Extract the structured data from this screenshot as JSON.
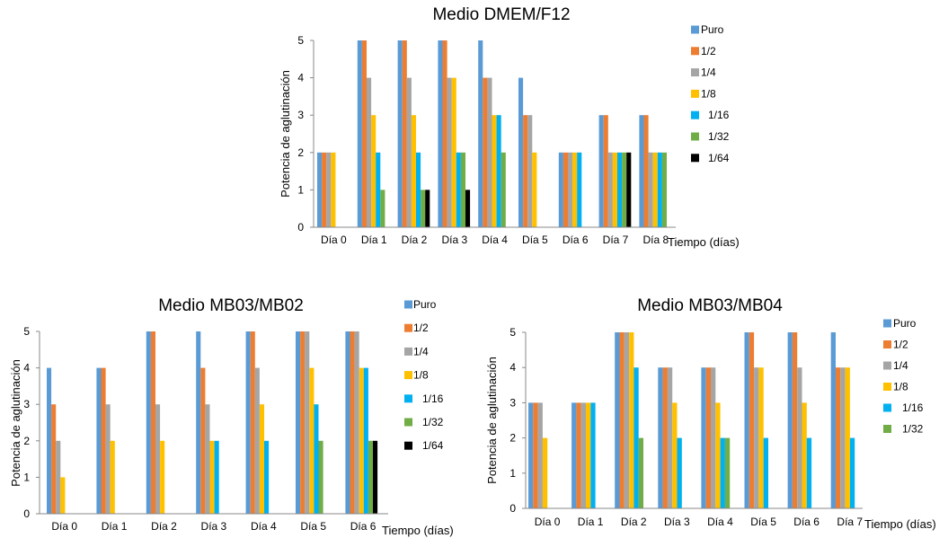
{
  "chart_data": [
    {
      "type": "bar",
      "title": "Medio DMEM/F12",
      "xlabel": "Tiempo (días)",
      "ylabel": "Potencia de aglutinación",
      "ylim": [
        0,
        5
      ],
      "yticks": [
        "0",
        "1",
        "2",
        "3",
        "4",
        "5"
      ],
      "grid": false,
      "legend": "right",
      "categories": [
        "Día 0",
        "Día 1",
        "Día 2",
        "Día 3",
        "Día 4",
        "Día 5",
        "Día 6",
        "Día 7",
        "Día 8"
      ],
      "series": [
        {
          "name": "Puro",
          "color": "#5B9BD5",
          "values": [
            2,
            5,
            5,
            5,
            5,
            4,
            2,
            3,
            3
          ]
        },
        {
          "name": "1/2",
          "color": "#ED7D31",
          "values": [
            2,
            5,
            5,
            5,
            4,
            3,
            2,
            3,
            3
          ]
        },
        {
          "name": "1/4",
          "color": "#A5A5A5",
          "values": [
            2,
            4,
            4,
            4,
            4,
            3,
            2,
            2,
            2
          ]
        },
        {
          "name": "1/8",
          "color": "#FFC000",
          "values": [
            2,
            3,
            3,
            4,
            3,
            2,
            2,
            2,
            2
          ]
        },
        {
          "name": "1/16",
          "color": "#00B0F0",
          "values": [
            0,
            2,
            2,
            2,
            3,
            0,
            2,
            2,
            2
          ]
        },
        {
          "name": "1/32",
          "color": "#70AD47",
          "values": [
            0,
            1,
            1,
            2,
            2,
            0,
            0,
            2,
            2
          ]
        },
        {
          "name": "1/64",
          "color": "#000000",
          "values": [
            0,
            0,
            1,
            1,
            0,
            0,
            0,
            2,
            0
          ]
        }
      ]
    },
    {
      "type": "bar",
      "title": "Medio MB03/MB02",
      "xlabel": "Tiempo (días)",
      "ylabel": "Potencia de aglutinación",
      "ylim": [
        0,
        5
      ],
      "yticks": [
        "0",
        "1",
        "2",
        "3",
        "4",
        "5"
      ],
      "grid": false,
      "legend": "right",
      "categories": [
        "Día 0",
        "Día 1",
        "Día 2",
        "Día 3",
        "Día 4",
        "Día 5",
        "Día 6"
      ],
      "series": [
        {
          "name": "Puro",
          "color": "#5B9BD5",
          "values": [
            4,
            4,
            5,
            5,
            5,
            5,
            5
          ]
        },
        {
          "name": "1/2",
          "color": "#ED7D31",
          "values": [
            3,
            4,
            5,
            4,
            5,
            5,
            5
          ]
        },
        {
          "name": "1/4",
          "color": "#A5A5A5",
          "values": [
            2,
            3,
            3,
            3,
            4,
            5,
            5
          ]
        },
        {
          "name": "1/8",
          "color": "#FFC000",
          "values": [
            1,
            2,
            2,
            2,
            3,
            4,
            4
          ]
        },
        {
          "name": "1/16",
          "color": "#00B0F0",
          "values": [
            0,
            0,
            0,
            2,
            2,
            3,
            4
          ]
        },
        {
          "name": "1/32",
          "color": "#70AD47",
          "values": [
            0,
            0,
            0,
            0,
            0,
            2,
            2
          ]
        },
        {
          "name": "1/64",
          "color": "#000000",
          "values": [
            0,
            0,
            0,
            0,
            0,
            0,
            2
          ]
        }
      ]
    },
    {
      "type": "bar",
      "title": "Medio MB03/MB04",
      "xlabel": "Tiempo (días)",
      "ylabel": "Potencia de aglutinación",
      "ylim": [
        0,
        5
      ],
      "yticks": [
        "0",
        "1",
        "2",
        "3",
        "4",
        "5"
      ],
      "grid": false,
      "legend": "right",
      "categories": [
        "Día 0",
        "Día 1",
        "Día 2",
        "Día 3",
        "Día 4",
        "Día 5",
        "Día 6",
        "Día 7"
      ],
      "series": [
        {
          "name": "Puro",
          "color": "#5B9BD5",
          "values": [
            3,
            3,
            5,
            4,
            4,
            5,
            5,
            5
          ]
        },
        {
          "name": "1/2",
          "color": "#ED7D31",
          "values": [
            3,
            3,
            5,
            4,
            4,
            5,
            5,
            4
          ]
        },
        {
          "name": "1/4",
          "color": "#A5A5A5",
          "values": [
            3,
            3,
            5,
            4,
            4,
            4,
            4,
            4
          ]
        },
        {
          "name": "1/8",
          "color": "#FFC000",
          "values": [
            2,
            3,
            5,
            3,
            3,
            4,
            3,
            4
          ]
        },
        {
          "name": "1/16",
          "color": "#00B0F0",
          "values": [
            0,
            3,
            4,
            2,
            2,
            2,
            2,
            2
          ]
        },
        {
          "name": "1/32",
          "color": "#70AD47",
          "values": [
            0,
            0,
            2,
            0,
            2,
            0,
            0,
            0
          ]
        }
      ]
    }
  ]
}
